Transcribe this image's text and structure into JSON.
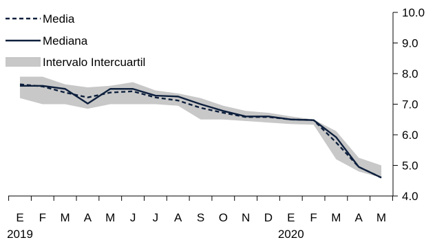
{
  "chart_data": {
    "type": "line",
    "title": "",
    "categories": [
      "E",
      "F",
      "M",
      "A",
      "M",
      "J",
      "J",
      "A",
      "S",
      "O",
      "N",
      "D",
      "E",
      "F",
      "M",
      "A",
      "M"
    ],
    "years": [
      {
        "label": "2019",
        "category_index": 0
      },
      {
        "label": "2020",
        "category_index": 12
      }
    ],
    "ylim": [
      4.0,
      10.0
    ],
    "yticks": [
      4.0,
      5.0,
      6.0,
      7.0,
      8.0,
      9.0,
      10.0
    ],
    "ytick_labels": [
      "4.0",
      "5.0",
      "6.0",
      "7.0",
      "8.0",
      "9.0",
      "10.0"
    ],
    "y_axis_side": "right",
    "grid": false,
    "legend_position": "top-left",
    "series": [
      {
        "name": "Media",
        "style": "dashed",
        "color": "#0d1f3c",
        "values": [
          7.65,
          7.58,
          7.38,
          7.22,
          7.38,
          7.42,
          7.22,
          7.12,
          6.88,
          6.72,
          6.58,
          6.58,
          6.5,
          6.48,
          5.75,
          4.95,
          4.6
        ]
      },
      {
        "name": "Mediana",
        "style": "solid",
        "color": "#0d1f3c",
        "values": [
          7.6,
          7.6,
          7.5,
          7.02,
          7.5,
          7.5,
          7.28,
          7.25,
          7.0,
          6.78,
          6.6,
          6.6,
          6.5,
          6.48,
          5.92,
          4.95,
          4.6
        ]
      },
      {
        "name": "Intervalo Intercuartil",
        "style": "band",
        "color": "#c8c8c8",
        "lower": [
          7.2,
          7.0,
          7.0,
          6.85,
          7.0,
          7.0,
          7.0,
          6.95,
          6.5,
          6.5,
          6.45,
          6.4,
          6.35,
          6.33,
          5.2,
          4.8,
          4.6
        ],
        "upper": [
          7.9,
          7.9,
          7.65,
          7.55,
          7.6,
          7.72,
          7.45,
          7.35,
          7.2,
          6.95,
          6.78,
          6.72,
          6.6,
          6.5,
          6.12,
          5.25,
          5.0
        ]
      }
    ]
  }
}
